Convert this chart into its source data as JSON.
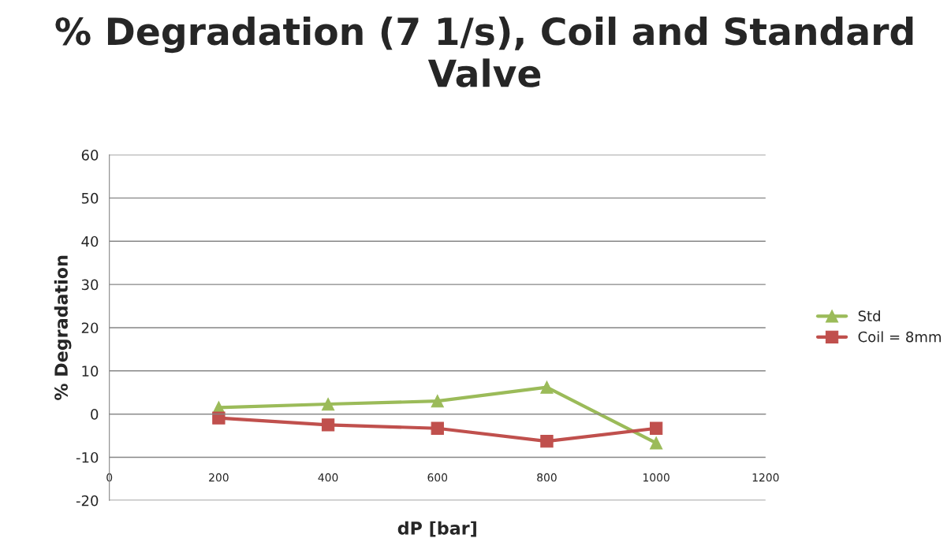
{
  "chart_data": {
    "type": "line",
    "title": "% Degradation (7 1/s), Coil and Standard Valve",
    "xlabel": "dP [bar]",
    "ylabel": "% Degradation",
    "x": [
      200,
      400,
      600,
      800,
      1000
    ],
    "series": [
      {
        "name": "Std",
        "color": "#9bbb59",
        "marker": "triangle",
        "values": [
          1.5,
          2.3,
          3.0,
          6.2,
          -6.7
        ]
      },
      {
        "name": "Coil = 8mm",
        "color": "#c0504d",
        "marker": "square",
        "values": [
          -0.9,
          -2.5,
          -3.3,
          -6.3,
          -3.3
        ]
      }
    ],
    "xlim": [
      0,
      1200
    ],
    "xticks": [
      0,
      200,
      400,
      600,
      800,
      1000,
      1200
    ],
    "ylim": [
      -20,
      60
    ],
    "yticks": [
      -20,
      -10,
      0,
      10,
      20,
      30,
      40,
      50,
      60
    ],
    "grid": "y",
    "legend": "right"
  }
}
